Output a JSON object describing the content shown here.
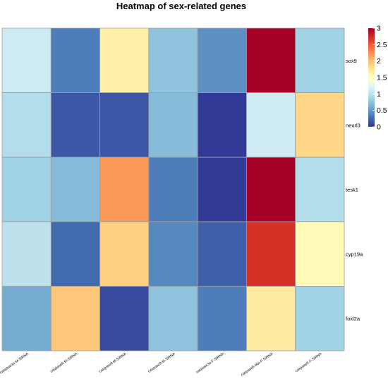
{
  "chart_data": {
    "type": "heatmap",
    "title": "Heatmap of sex-related genes",
    "rows": [
      "sox9",
      "neurl3",
      "tesk1",
      "cyp19a",
      "foxl2a"
    ],
    "columns": [
      "caspase3a-M-SiRNA",
      "caspase6-M-SiRNA",
      "caspase8-M-SiRNA",
      "caspase9-M-SiRNA",
      "caspase3a-F-SiRNA",
      "caspase6-like-F-SiRNA",
      "caspase9-F-SiRNA"
    ],
    "values": [
      [
        1.1,
        0.35,
        1.65,
        0.75,
        0.45,
        3.0,
        0.85
      ],
      [
        0.95,
        0.15,
        0.15,
        0.7,
        0.02,
        1.1,
        1.85
      ],
      [
        0.85,
        0.7,
        2.2,
        0.35,
        0.02,
        3.0,
        0.95
      ],
      [
        1.0,
        0.25,
        1.9,
        0.4,
        0.2,
        2.7,
        1.55
      ],
      [
        0.6,
        1.95,
        0.1,
        0.75,
        0.35,
        1.7,
        0.85
      ]
    ],
    "color_range": [
      0,
      3
    ],
    "colormap": [
      "#313695",
      "#4575b4",
      "#74add1",
      "#abd9e9",
      "#e0f3f8",
      "#ffffbf",
      "#fee090",
      "#fdae61",
      "#f46d43",
      "#d73027",
      "#a50026"
    ],
    "legend": {
      "position": "right",
      "ticks": [
        0,
        0.5,
        1,
        1.5,
        2,
        2.5,
        3
      ],
      "tick_labels": [
        "0",
        "0.5",
        "1",
        "1.5",
        "2",
        "2.5",
        "3"
      ]
    },
    "grid": true,
    "grid_color": "#9e9e9e"
  }
}
